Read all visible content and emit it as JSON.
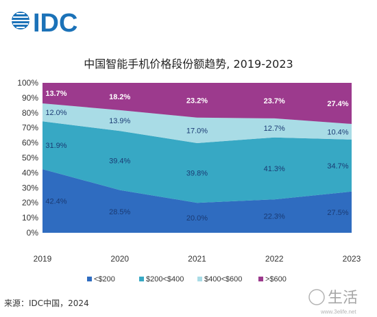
{
  "logo": {
    "text": "IDC"
  },
  "source": "来源：IDC中国，2024",
  "watermark": {
    "text": "生活",
    "url": "www.3elife.net"
  },
  "colors": {
    "s1": "#2f6cc0",
    "s2": "#37a8c4",
    "s3": "#a9dce6",
    "s4": "#9c3a8d",
    "plot_bg": "#e6e6e6",
    "logo": "#1b72b8"
  },
  "chart_data": {
    "type": "area",
    "stacked": true,
    "title": "中国智能手机价格段份额趋势, 2019-2023",
    "x": [
      "2019",
      "2020",
      "2021",
      "2022",
      "2023"
    ],
    "ylim": [
      0,
      100
    ],
    "yticks": [
      "0%",
      "10%",
      "20%",
      "30%",
      "40%",
      "50%",
      "60%",
      "70%",
      "80%",
      "90%",
      "100%"
    ],
    "legend_position": "bottom",
    "series": [
      {
        "name": "<$200",
        "values": [
          42.4,
          28.5,
          20.0,
          22.3,
          27.5
        ],
        "labels": [
          "42.4%",
          "28.5%",
          "20.0%",
          "22.3%",
          "27.5%"
        ]
      },
      {
        "name": "$200<$400",
        "values": [
          31.9,
          39.4,
          39.8,
          41.3,
          34.7
        ],
        "labels": [
          "31.9%",
          "39.4%",
          "39.8%",
          "41.3%",
          "34.7%"
        ]
      },
      {
        "name": "$400<$600",
        "values": [
          12.0,
          13.9,
          17.0,
          12.7,
          10.4
        ],
        "labels": [
          "12.0%",
          "13.9%",
          "17.0%",
          "12.7%",
          "10.4%"
        ]
      },
      {
        "name": ">$600",
        "values": [
          13.7,
          18.2,
          23.2,
          23.7,
          27.4
        ],
        "labels": [
          "13.7%",
          "18.2%",
          "23.2%",
          "23.7%",
          "27.4%"
        ]
      }
    ]
  }
}
